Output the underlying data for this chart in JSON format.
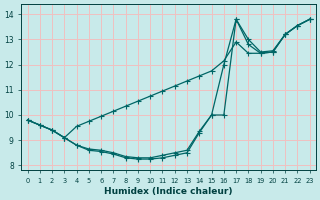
{
  "xlabel": "Humidex (Indice chaleur)",
  "bg_color": "#c8eaea",
  "grid_color": "#f0c0c0",
  "line_color": "#006666",
  "xlim": [
    -0.5,
    23.5
  ],
  "ylim": [
    7.8,
    14.4
  ],
  "xticks": [
    0,
    1,
    2,
    3,
    4,
    5,
    6,
    7,
    8,
    9,
    10,
    11,
    12,
    13,
    14,
    15,
    16,
    17,
    18,
    19,
    20,
    21,
    22,
    23
  ],
  "yticks": [
    8,
    9,
    10,
    11,
    12,
    13,
    14
  ],
  "line1_x": [
    0,
    1,
    2,
    3,
    4,
    5,
    6,
    7,
    8,
    9,
    10,
    11,
    12,
    13,
    14,
    15,
    16,
    17,
    18,
    19,
    20,
    21,
    22,
    23
  ],
  "line1_y": [
    9.8,
    9.6,
    9.4,
    9.1,
    8.8,
    8.6,
    8.55,
    8.45,
    8.3,
    8.25,
    8.25,
    8.3,
    8.4,
    8.5,
    9.3,
    10.0,
    10.0,
    13.8,
    12.8,
    12.45,
    12.5,
    13.2,
    13.55,
    13.8
  ],
  "line2_x": [
    0,
    1,
    2,
    3,
    4,
    5,
    6,
    7,
    8,
    9,
    10,
    11,
    12,
    13,
    14,
    15,
    16,
    17,
    18,
    19,
    20,
    21,
    22,
    23
  ],
  "line2_y": [
    9.8,
    9.6,
    9.4,
    9.1,
    8.8,
    8.65,
    8.6,
    8.5,
    8.35,
    8.3,
    8.3,
    8.4,
    8.5,
    8.6,
    9.35,
    10.0,
    12.0,
    13.8,
    13.0,
    12.5,
    12.55,
    13.2,
    13.55,
    13.8
  ],
  "line3_x": [
    0,
    1,
    2,
    3,
    4,
    5,
    6,
    7,
    8,
    9,
    10,
    11,
    12,
    13,
    14,
    15,
    16,
    17,
    18,
    19,
    20,
    21,
    22,
    23
  ],
  "line3_y": [
    9.8,
    9.6,
    9.4,
    9.1,
    9.55,
    9.75,
    9.95,
    10.15,
    10.35,
    10.55,
    10.75,
    10.95,
    11.15,
    11.35,
    11.55,
    11.75,
    12.15,
    12.9,
    12.45,
    12.45,
    12.5,
    13.2,
    13.55,
    13.8
  ]
}
